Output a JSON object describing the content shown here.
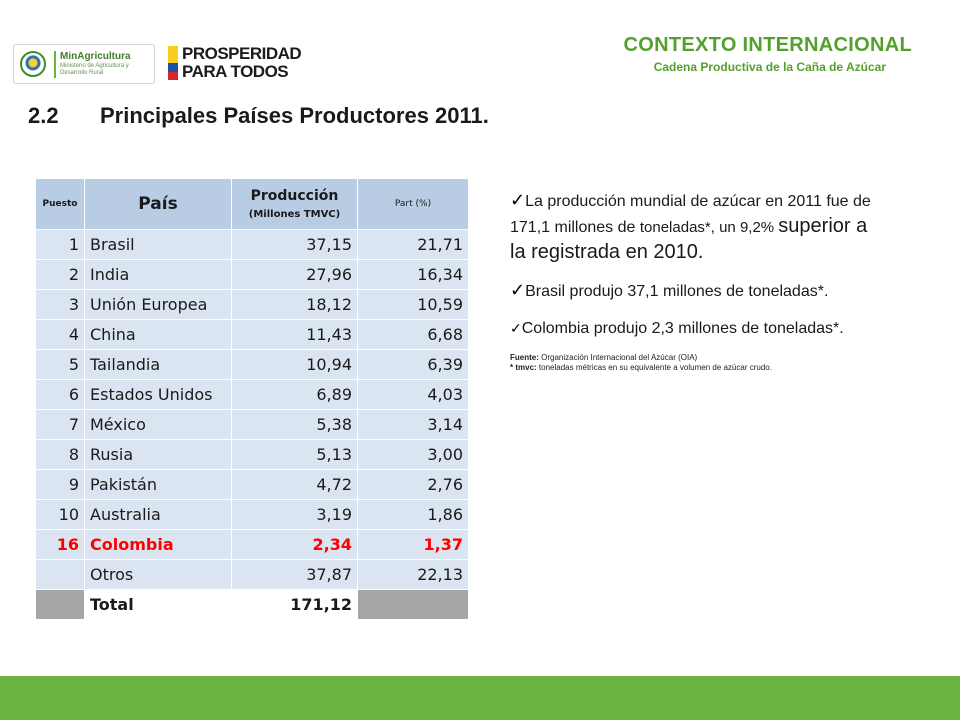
{
  "header": {
    "logo_left_name": "MinAgricultura",
    "logo_left_sub": "Ministerio de Agricultura y Desarrollo Rural",
    "logo_right_line1": "PROSPERIDAD",
    "logo_right_line2": "PARA TODOS",
    "title": "CONTEXTO INTERNACIONAL",
    "subtitle": "Cadena Productiva de la Caña de Azúcar"
  },
  "section": {
    "number": "2.2",
    "title": "Principales Países Productores 2011."
  },
  "table": {
    "headers": {
      "puesto": "Puesto",
      "pais": "País",
      "produccion": "Producción",
      "produccion_unit": "(Millones TMVC)",
      "part": "Part (%)"
    },
    "rows": [
      {
        "puesto": "1",
        "pais": "Brasil",
        "produccion": "37,15",
        "part": "21,71"
      },
      {
        "puesto": "2",
        "pais": "India",
        "produccion": "27,96",
        "part": "16,34"
      },
      {
        "puesto": "3",
        "pais": "Unión Europea",
        "produccion": "18,12",
        "part": "10,59"
      },
      {
        "puesto": "4",
        "pais": "China",
        "produccion": "11,43",
        "part": "6,68"
      },
      {
        "puesto": "5",
        "pais": "Tailandia",
        "produccion": "10,94",
        "part": "6,39"
      },
      {
        "puesto": "6",
        "pais": "Estados Unidos",
        "produccion": "6,89",
        "part": "4,03"
      },
      {
        "puesto": "7",
        "pais": "México",
        "produccion": "5,38",
        "part": "3,14"
      },
      {
        "puesto": "8",
        "pais": "Rusia",
        "produccion": "5,13",
        "part": "3,00"
      },
      {
        "puesto": "9",
        "pais": "Pakistán",
        "produccion": "4,72",
        "part": "2,76"
      },
      {
        "puesto": "10",
        "pais": "Australia",
        "produccion": "3,19",
        "part": "1,86"
      },
      {
        "puesto": "16",
        "pais": "Colombia",
        "produccion": "2,34",
        "part": "1,37"
      },
      {
        "puesto": "",
        "pais": "Otros",
        "produccion": "37,87",
        "part": "22,13"
      }
    ],
    "total": {
      "label": "Total",
      "produccion": "171,12"
    },
    "highlight_color": "#ff0000"
  },
  "bullets": {
    "b1_part1": "La producción mundial de azúcar en 2011 fue de 171,1 millones de ",
    "b1_part2": "toneladas*, un 9,2% ",
    "b1_part3": "superior a la registrada en 2010",
    "b1_part4": ".",
    "b2": "Brasil produjo 37,1 millones de toneladas*.",
    "b3": "Colombia produjo 2,3 millones de toneladas*.",
    "source_label": "Fuente:",
    "source_text": "Organización Internacional del Azúcar (OIA)",
    "note_label": "* tmvc:",
    "note_text": "toneladas métricas en su equivalente a volumen de azúcar crudo."
  },
  "colors": {
    "accent_green": "#54a02e",
    "footer_green": "#6db33f",
    "table_header": "#b8cce4",
    "table_row": "#dbe5f1",
    "total_row": "#a6a6a6"
  },
  "icons": [
    "colombia-seal-icon",
    "colombia-flag-icon",
    "checkmark-icon"
  ]
}
